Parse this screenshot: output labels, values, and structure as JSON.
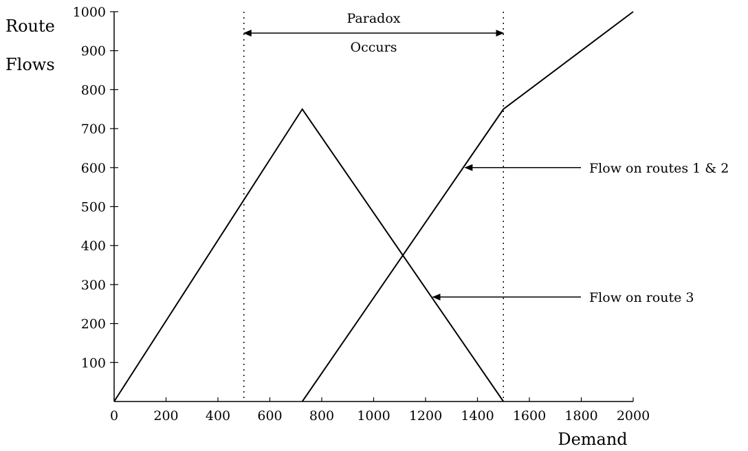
{
  "chart_data": {
    "type": "line",
    "title": "",
    "xlabel": "Demand",
    "ylabel_lines": [
      "Route",
      "Flows"
    ],
    "xlim": [
      0,
      2000
    ],
    "ylim": [
      0,
      1000
    ],
    "x_ticks": [
      0,
      200,
      400,
      600,
      800,
      1000,
      1200,
      1400,
      1600,
      1800,
      2000
    ],
    "y_ticks": [
      100,
      200,
      300,
      400,
      500,
      600,
      700,
      800,
      900,
      1000
    ],
    "grid": false,
    "series": [
      {
        "name": "Flow on route 3",
        "points": [
          [
            0,
            0
          ],
          [
            725,
            750
          ],
          [
            1500,
            0
          ]
        ]
      },
      {
        "name": "Flow on routes 1 & 2",
        "points": [
          [
            725,
            0
          ],
          [
            1500,
            750
          ],
          [
            2000,
            1000
          ]
        ]
      }
    ],
    "reference_lines": [
      {
        "x": 500,
        "style": "dotted"
      },
      {
        "x": 1500,
        "style": "dotted"
      }
    ],
    "range_annotation": {
      "from": 500,
      "to": 1500,
      "y": 945,
      "label_top": "Paradox",
      "label_bottom": "Occurs"
    },
    "annotations": [
      {
        "text": "Flow on routes 1 & 2",
        "target": [
          1352,
          600
        ]
      },
      {
        "text": "Flow on route 3",
        "target": [
          1228,
          268
        ]
      }
    ]
  }
}
